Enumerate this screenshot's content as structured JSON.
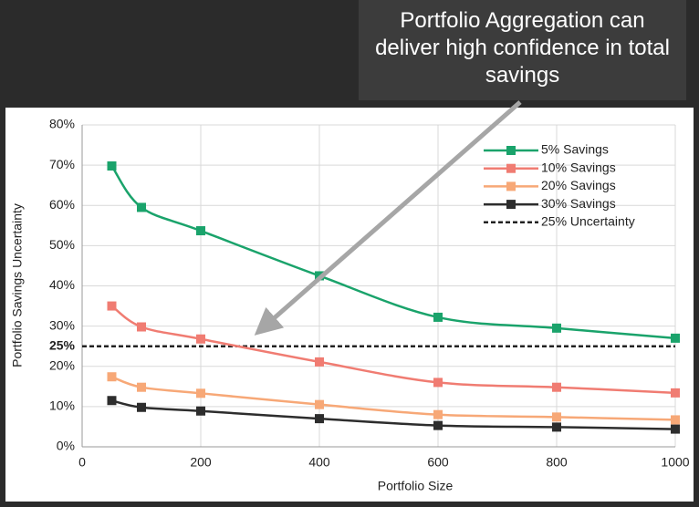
{
  "chart_data": {
    "type": "line",
    "annotation": "Portfolio Aggregation can deliver high confidence in total savings",
    "x_label": "Portfolio Size",
    "y_label": "Portfolio Savings Uncertainty",
    "x": [
      50,
      100,
      200,
      400,
      600,
      800,
      1000
    ],
    "series": [
      {
        "name": "5% Savings",
        "color": "#1aa36b",
        "values": [
          69.8,
          59.5,
          53.7,
          42.5,
          32.2,
          29.5,
          27.0
        ]
      },
      {
        "name": "10% Savings",
        "color": "#f07c72",
        "values": [
          35.0,
          29.8,
          26.8,
          21.1,
          16.0,
          14.8,
          13.4
        ]
      },
      {
        "name": "20% Savings",
        "color": "#f7a877",
        "values": [
          17.4,
          14.8,
          13.3,
          10.5,
          8.0,
          7.4,
          6.7
        ]
      },
      {
        "name": "30% Savings",
        "color": "#2d2d2d",
        "values": [
          11.5,
          9.8,
          8.9,
          7.0,
          5.3,
          4.9,
          4.4
        ]
      }
    ],
    "reference_line": {
      "name": "25% Uncertainty",
      "value": 25,
      "label": "25%",
      "color": "#222222"
    },
    "xlim": [
      0,
      1000
    ],
    "xticks": [
      0,
      200,
      400,
      600,
      800,
      1000
    ],
    "ylim": [
      0,
      80
    ],
    "yticks": [
      {
        "value": 0,
        "label": "0%"
      },
      {
        "value": 10,
        "label": "10%"
      },
      {
        "value": 20,
        "label": "20%"
      },
      {
        "value": 30,
        "label": "30%"
      },
      {
        "value": 40,
        "label": "40%"
      },
      {
        "value": 50,
        "label": "50%"
      },
      {
        "value": 60,
        "label": "60%"
      },
      {
        "value": 70,
        "label": "70%"
      },
      {
        "value": 80,
        "label": "80%"
      }
    ],
    "grid": true,
    "legend": "top-right"
  }
}
